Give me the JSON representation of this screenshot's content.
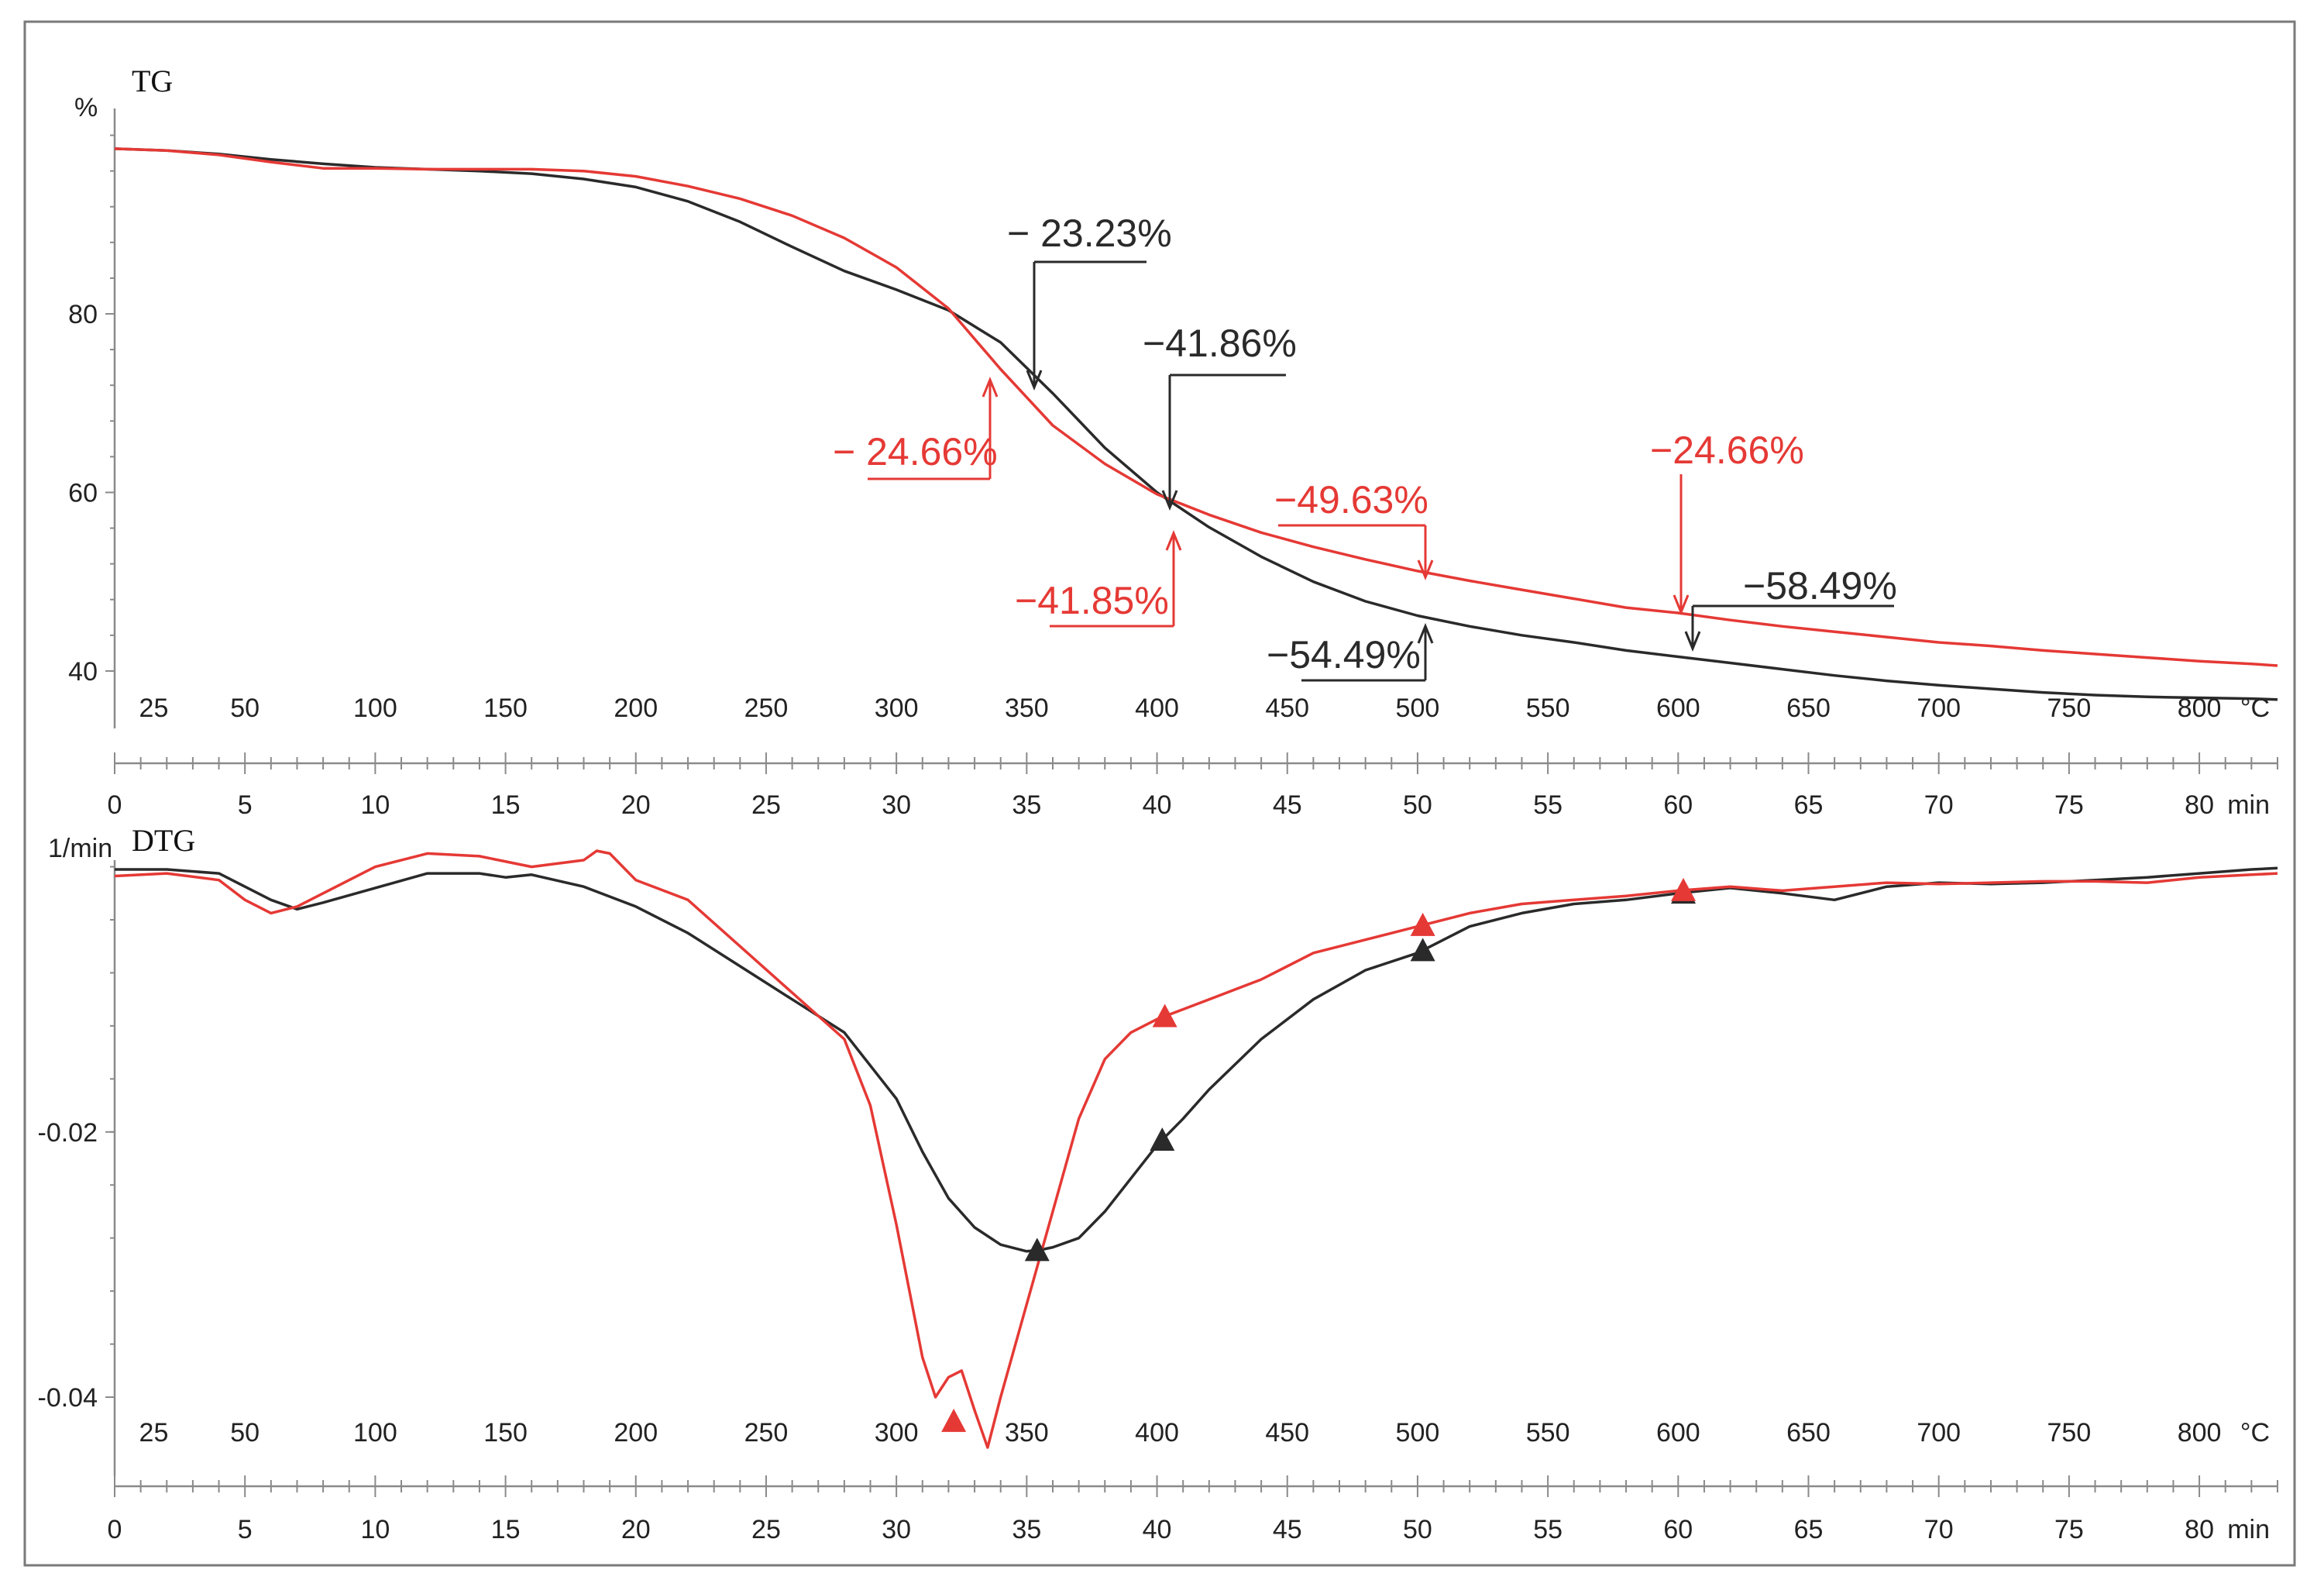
{
  "colors": {
    "sample_black": "#2a2a2a",
    "sample_red": "#e53935",
    "axis": "#8a8a8a"
  },
  "chart_data": [
    {
      "panel": "TG",
      "type": "line",
      "title": "TG",
      "ylabel": "%",
      "x_temp_label": "°C",
      "x_time_label": "min",
      "temp_ticks": [
        25,
        50,
        100,
        150,
        200,
        250,
        300,
        350,
        400,
        450,
        500,
        550,
        600,
        650,
        700,
        750,
        800
      ],
      "time_ticks": [
        0,
        5,
        10,
        15,
        20,
        25,
        30,
        35,
        40,
        45,
        50,
        55,
        60,
        65,
        70,
        75,
        80
      ],
      "y_ticks": [
        "80",
        "60",
        "40"
      ],
      "ylim": [
        36,
        103
      ],
      "xlim_min": [
        0,
        83
      ],
      "series": [
        {
          "color": "#2a2a2a",
          "x_min": [
            0,
            2,
            4,
            6,
            8,
            10,
            12,
            14,
            16,
            18,
            20,
            22,
            24,
            26,
            28,
            30,
            32,
            34,
            36,
            38,
            40,
            42,
            44,
            46,
            48,
            50,
            52,
            54,
            56,
            58,
            60,
            62,
            64,
            66,
            68,
            70,
            72,
            74,
            76,
            78,
            80,
            82,
            83
          ],
          "y": [
            98.5,
            98.3,
            97.9,
            97.3,
            96.8,
            96.4,
            96.2,
            96.0,
            95.7,
            95.1,
            94.2,
            92.6,
            90.3,
            87.5,
            84.8,
            82.7,
            80.4,
            76.8,
            71.1,
            65.0,
            60.0,
            56.1,
            52.8,
            50.0,
            47.8,
            46.2,
            45.0,
            44.0,
            43.2,
            42.3,
            41.6,
            40.9,
            40.2,
            39.5,
            38.9,
            38.4,
            38.0,
            37.6,
            37.3,
            37.1,
            37.0,
            36.9,
            36.8
          ]
        },
        {
          "color": "#e53935",
          "x_min": [
            0,
            2,
            4,
            6,
            8,
            10,
            12,
            14,
            16,
            18,
            20,
            22,
            24,
            26,
            28,
            30,
            32,
            34,
            36,
            38,
            40,
            42,
            44,
            46,
            48,
            50,
            52,
            54,
            56,
            58,
            60,
            62,
            64,
            66,
            68,
            70,
            72,
            74,
            76,
            78,
            80,
            82,
            83
          ],
          "y": [
            98.5,
            98.3,
            97.8,
            97.0,
            96.3,
            96.3,
            96.2,
            96.2,
            96.2,
            96.0,
            95.4,
            94.3,
            92.9,
            91.0,
            88.5,
            85.2,
            80.6,
            73.8,
            67.5,
            63.2,
            59.8,
            57.5,
            55.5,
            53.9,
            52.5,
            51.2,
            50.1,
            49.1,
            48.1,
            47.1,
            46.5,
            45.7,
            45.0,
            44.4,
            43.8,
            43.2,
            42.8,
            42.3,
            41.9,
            41.5,
            41.1,
            40.8,
            40.6
          ]
        }
      ],
      "annotations": [
        {
          "text": "− 23.23%",
          "color": "#2a2a2a"
        },
        {
          "text": "−41.86%",
          "color": "#2a2a2a"
        },
        {
          "text": "−54.49%",
          "color": "#2a2a2a"
        },
        {
          "text": "−58.49%",
          "color": "#2a2a2a"
        },
        {
          "text": "− 24.66%",
          "color": "#e53935"
        },
        {
          "text": "−41.85%",
          "color": "#e53935"
        },
        {
          "text": "−49.63%",
          "color": "#e53935"
        },
        {
          "text": "−24.66%",
          "color": "#e53935"
        }
      ]
    },
    {
      "panel": "DTG",
      "type": "line",
      "title": "DTG",
      "ylabel": "1/min",
      "x_temp_label": "°C",
      "x_time_label": "min",
      "temp_ticks": [
        25,
        50,
        100,
        150,
        200,
        250,
        300,
        350,
        400,
        450,
        500,
        550,
        600,
        650,
        700,
        750,
        800
      ],
      "time_ticks": [
        0,
        5,
        10,
        15,
        20,
        25,
        30,
        35,
        40,
        45,
        50,
        55,
        60,
        65,
        70,
        75,
        80
      ],
      "y_ticks": [
        "-0.02",
        "-0.04"
      ],
      "ylim": [
        -0.0445,
        0.0005
      ],
      "xlim_min": [
        0,
        83
      ],
      "series": [
        {
          "color": "#2a2a2a",
          "x_min": [
            0,
            2,
            4,
            5,
            6,
            7,
            8,
            10,
            12,
            14,
            15,
            16,
            18,
            20,
            22,
            24,
            26,
            28,
            30,
            31,
            32,
            33,
            34,
            35,
            35.5,
            36,
            37,
            38,
            39,
            40,
            41,
            42,
            44,
            46,
            48,
            50,
            52,
            54,
            56,
            58,
            60,
            62,
            64,
            66,
            68,
            70,
            72,
            74,
            76,
            78,
            80,
            82,
            83
          ],
          "y": [
            -0.0002,
            -0.0002,
            -0.0005,
            -0.0015,
            -0.0025,
            -0.0032,
            -0.0027,
            -0.0016,
            -0.0005,
            -0.0005,
            -0.0008,
            -0.0006,
            -0.0015,
            -0.003,
            -0.005,
            -0.0075,
            -0.01,
            -0.0125,
            -0.0175,
            -0.0215,
            -0.025,
            -0.0272,
            -0.0285,
            -0.029,
            -0.0289,
            -0.0287,
            -0.028,
            -0.026,
            -0.0235,
            -0.021,
            -0.019,
            -0.0168,
            -0.013,
            -0.01,
            -0.0078,
            -0.0065,
            -0.0045,
            -0.0035,
            -0.0028,
            -0.0025,
            -0.002,
            -0.0016,
            -0.002,
            -0.0025,
            -0.0015,
            -0.0012,
            -0.0013,
            -0.0012,
            -0.001,
            -0.0008,
            -0.0005,
            -0.0002,
            -0.0001
          ]
        },
        {
          "color": "#e53935",
          "x_min": [
            0,
            2,
            4,
            5,
            6,
            7,
            8,
            10,
            12,
            14,
            16,
            18,
            18.5,
            19,
            20,
            22,
            24,
            26,
            28,
            29,
            30,
            31,
            31.5,
            32,
            32.5,
            33,
            33.5,
            34,
            35,
            36,
            37,
            38,
            39,
            40,
            42,
            44,
            46,
            48,
            50,
            52,
            54,
            56,
            58,
            60,
            62,
            64,
            66,
            68,
            70,
            72,
            74,
            76,
            78,
            80,
            82,
            83
          ],
          "y": [
            -0.0007,
            -0.0005,
            -0.001,
            -0.0025,
            -0.0035,
            -0.003,
            -0.002,
            0.0,
            0.001,
            0.0008,
            0.0,
            0.0005,
            0.0012,
            0.001,
            -0.001,
            -0.0025,
            -0.006,
            -0.0095,
            -0.013,
            -0.018,
            -0.027,
            -0.037,
            -0.04,
            -0.0385,
            -0.038,
            -0.041,
            -0.0438,
            -0.04,
            -0.033,
            -0.026,
            -0.019,
            -0.0145,
            -0.0125,
            -0.0115,
            -0.01,
            -0.0085,
            -0.0065,
            -0.0055,
            -0.0045,
            -0.0035,
            -0.0028,
            -0.0025,
            -0.0022,
            -0.0018,
            -0.0015,
            -0.0018,
            -0.0015,
            -0.0012,
            -0.0013,
            -0.0012,
            -0.0011,
            -0.0011,
            -0.0012,
            -0.0008,
            -0.0006,
            -0.0005
          ]
        }
      ]
    }
  ]
}
